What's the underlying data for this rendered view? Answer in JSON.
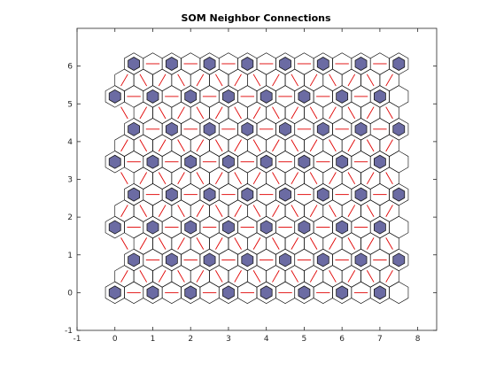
{
  "chart_data": {
    "type": "scatter",
    "title": "SOM Neighbor Connections",
    "xlabel": "",
    "ylabel": "",
    "xlim": [
      -1,
      8.5
    ],
    "ylim": [
      -1,
      7
    ],
    "xticks": [
      -1,
      0,
      1,
      2,
      3,
      4,
      5,
      6,
      7,
      8
    ],
    "yticks": [
      -1,
      0,
      1,
      2,
      3,
      4,
      5,
      6
    ],
    "grid": false,
    "topology": "hexagonal",
    "grid_size": [
      8,
      8
    ],
    "row_offset": 0.5,
    "row_spacing": 0.866,
    "node_color": "#6b6ba3",
    "connection_color": "#e00000",
    "cell_outline_color": "#000000"
  }
}
